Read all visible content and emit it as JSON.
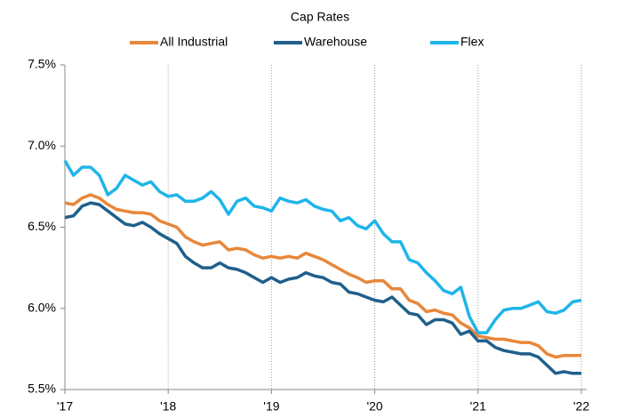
{
  "chart_data": {
    "type": "line",
    "title": "Cap Rates",
    "categories": [
      "'17",
      null,
      null,
      null,
      null,
      null,
      null,
      null,
      null,
      null,
      null,
      null,
      "'18",
      null,
      null,
      null,
      null,
      null,
      null,
      null,
      null,
      null,
      null,
      null,
      "'19",
      null,
      null,
      null,
      null,
      null,
      null,
      null,
      null,
      null,
      null,
      null,
      "'20",
      null,
      null,
      null,
      null,
      null,
      null,
      null,
      null,
      null,
      null,
      null,
      "'21",
      null,
      null,
      null,
      null,
      null,
      null,
      null,
      null,
      null,
      null,
      null,
      "'22"
    ],
    "series": [
      {
        "name": "All Industrial",
        "color": "#e8873a",
        "values": [
          6.65,
          6.64,
          6.68,
          6.7,
          6.68,
          6.64,
          6.61,
          6.6,
          6.59,
          6.59,
          6.58,
          6.54,
          6.52,
          6.5,
          6.44,
          6.41,
          6.39,
          6.4,
          6.41,
          6.36,
          6.37,
          6.36,
          6.33,
          6.31,
          6.32,
          6.31,
          6.32,
          6.31,
          6.34,
          6.32,
          6.3,
          6.27,
          6.24,
          6.21,
          6.19,
          6.16,
          6.17,
          6.17,
          6.12,
          6.12,
          6.05,
          6.03,
          5.98,
          5.99,
          5.97,
          5.96,
          5.91,
          5.88,
          5.83,
          5.82,
          5.81,
          5.81,
          5.8,
          5.79,
          5.79,
          5.77,
          5.72,
          5.7,
          5.71,
          5.71,
          5.71
        ]
      },
      {
        "name": "Warehouse",
        "color": "#1f5f8b",
        "values": [
          6.56,
          6.57,
          6.63,
          6.65,
          6.64,
          6.6,
          6.56,
          6.52,
          6.51,
          6.53,
          6.5,
          6.46,
          6.43,
          6.4,
          6.32,
          6.28,
          6.25,
          6.25,
          6.28,
          6.25,
          6.24,
          6.22,
          6.19,
          6.16,
          6.19,
          6.16,
          6.18,
          6.19,
          6.22,
          6.2,
          6.19,
          6.16,
          6.15,
          6.1,
          6.09,
          6.07,
          6.05,
          6.04,
          6.07,
          6.02,
          5.97,
          5.96,
          5.9,
          5.93,
          5.93,
          5.91,
          5.84,
          5.86,
          5.8,
          5.8,
          5.76,
          5.74,
          5.73,
          5.72,
          5.72,
          5.7,
          5.65,
          5.6,
          5.61,
          5.6,
          5.6
        ]
      },
      {
        "name": "Flex",
        "color": "#1fb5e8",
        "values": [
          6.91,
          6.82,
          6.87,
          6.87,
          6.82,
          6.7,
          6.74,
          6.82,
          6.79,
          6.76,
          6.78,
          6.72,
          6.69,
          6.7,
          6.66,
          6.66,
          6.68,
          6.72,
          6.67,
          6.58,
          6.66,
          6.68,
          6.63,
          6.62,
          6.6,
          6.68,
          6.66,
          6.65,
          6.67,
          6.63,
          6.61,
          6.6,
          6.54,
          6.56,
          6.51,
          6.49,
          6.54,
          6.46,
          6.41,
          6.41,
          6.3,
          6.28,
          6.22,
          6.17,
          6.11,
          6.09,
          6.13,
          5.95,
          5.85,
          5.85,
          5.93,
          5.99,
          6.0,
          6.0,
          6.02,
          6.04,
          5.98,
          5.97,
          5.99,
          6.04,
          6.05
        ]
      }
    ],
    "ylim": [
      5.5,
      7.5
    ],
    "yticks": [
      {
        "value": 5.5,
        "label": "5.5%"
      },
      {
        "value": 6.0,
        "label": "6.0%"
      },
      {
        "value": 6.5,
        "label": "6.5%"
      },
      {
        "value": 7.0,
        "label": "7.0%"
      },
      {
        "value": 7.5,
        "label": "7.5%"
      }
    ],
    "grid": "x"
  }
}
